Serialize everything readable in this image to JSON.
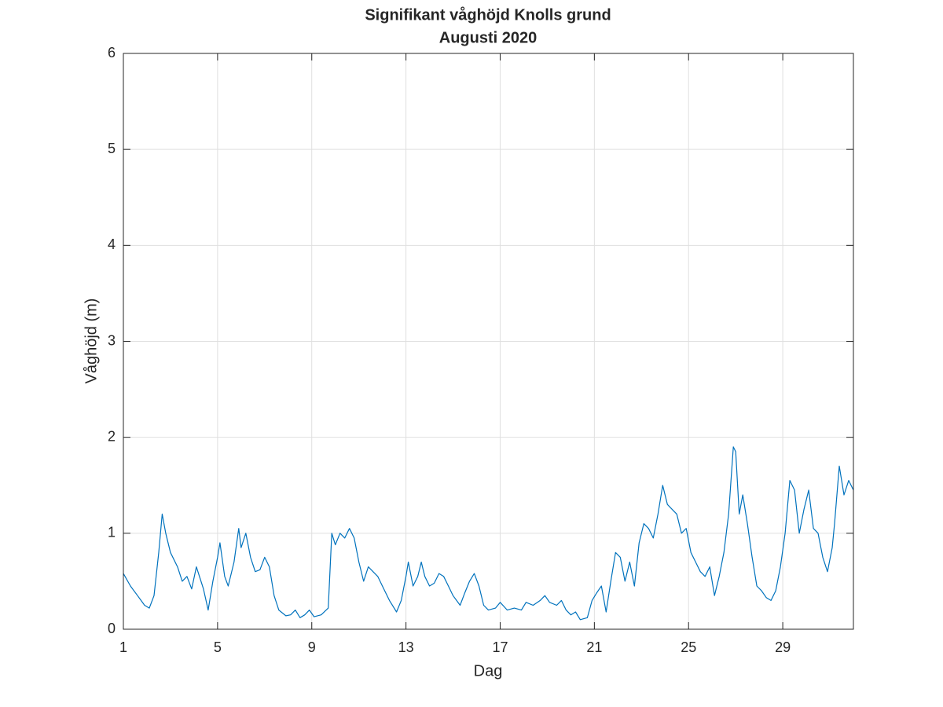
{
  "chart_data": {
    "type": "line",
    "title": "Signifikant våghöjd Knolls grund",
    "subtitle": "Augusti 2020",
    "xlabel": "Dag",
    "ylabel": "Våghöjd (m)",
    "xlim": [
      1,
      32
    ],
    "ylim": [
      0,
      6
    ],
    "xticks": [
      1,
      5,
      9,
      13,
      17,
      21,
      25,
      29
    ],
    "yticks": [
      0,
      1,
      2,
      3,
      4,
      5,
      6
    ],
    "grid": true,
    "x": [
      1.0,
      1.3,
      1.6,
      1.9,
      2.1,
      2.3,
      2.5,
      2.65,
      2.8,
      3.0,
      3.3,
      3.5,
      3.7,
      3.9,
      4.1,
      4.4,
      4.6,
      4.8,
      5.0,
      5.1,
      5.3,
      5.45,
      5.7,
      5.9,
      6.0,
      6.2,
      6.4,
      6.6,
      6.8,
      7.0,
      7.2,
      7.4,
      7.6,
      7.9,
      8.1,
      8.3,
      8.5,
      8.7,
      8.9,
      9.1,
      9.4,
      9.7,
      9.85,
      10.0,
      10.2,
      10.4,
      10.6,
      10.8,
      11.0,
      11.2,
      11.4,
      11.6,
      11.8,
      12.0,
      12.3,
      12.6,
      12.8,
      13.0,
      13.1,
      13.3,
      13.5,
      13.65,
      13.8,
      14.0,
      14.2,
      14.4,
      14.6,
      14.8,
      15.0,
      15.3,
      15.5,
      15.7,
      15.9,
      16.1,
      16.3,
      16.5,
      16.8,
      17.0,
      17.3,
      17.6,
      17.9,
      18.1,
      18.4,
      18.7,
      18.9,
      19.1,
      19.4,
      19.6,
      19.8,
      20.0,
      20.2,
      20.4,
      20.7,
      20.9,
      21.1,
      21.3,
      21.5,
      21.7,
      21.9,
      22.1,
      22.3,
      22.5,
      22.7,
      22.9,
      23.1,
      23.3,
      23.5,
      23.7,
      23.9,
      24.1,
      24.3,
      24.5,
      24.7,
      24.9,
      25.1,
      25.3,
      25.5,
      25.7,
      25.9,
      26.1,
      26.3,
      26.5,
      26.7,
      26.9,
      27.0,
      27.15,
      27.3,
      27.5,
      27.7,
      27.9,
      28.1,
      28.3,
      28.5,
      28.7,
      28.9,
      29.1,
      29.3,
      29.5,
      29.7,
      29.9,
      30.1,
      30.3,
      30.5,
      30.7,
      30.9,
      31.1,
      31.2,
      31.4,
      31.6,
      31.8,
      32.0
    ],
    "series": [
      {
        "color": "#0072bd",
        "values": [
          0.58,
          0.45,
          0.35,
          0.25,
          0.22,
          0.35,
          0.8,
          1.2,
          1.0,
          0.8,
          0.65,
          0.5,
          0.55,
          0.42,
          0.65,
          0.42,
          0.2,
          0.5,
          0.75,
          0.9,
          0.55,
          0.45,
          0.7,
          1.05,
          0.85,
          1.0,
          0.75,
          0.6,
          0.62,
          0.75,
          0.65,
          0.35,
          0.2,
          0.14,
          0.15,
          0.2,
          0.12,
          0.15,
          0.2,
          0.13,
          0.15,
          0.22,
          1.0,
          0.88,
          1.0,
          0.95,
          1.05,
          0.95,
          0.7,
          0.5,
          0.65,
          0.6,
          0.55,
          0.45,
          0.3,
          0.18,
          0.3,
          0.55,
          0.7,
          0.45,
          0.55,
          0.7,
          0.55,
          0.45,
          0.48,
          0.58,
          0.55,
          0.45,
          0.35,
          0.25,
          0.38,
          0.5,
          0.58,
          0.45,
          0.25,
          0.2,
          0.22,
          0.28,
          0.2,
          0.22,
          0.2,
          0.28,
          0.25,
          0.3,
          0.35,
          0.28,
          0.25,
          0.3,
          0.2,
          0.15,
          0.18,
          0.1,
          0.12,
          0.3,
          0.38,
          0.45,
          0.18,
          0.5,
          0.8,
          0.75,
          0.5,
          0.7,
          0.45,
          0.9,
          1.1,
          1.05,
          0.95,
          1.2,
          1.5,
          1.3,
          1.25,
          1.2,
          1.0,
          1.05,
          0.8,
          0.7,
          0.6,
          0.55,
          0.65,
          0.35,
          0.55,
          0.8,
          1.2,
          1.9,
          1.85,
          1.2,
          1.4,
          1.1,
          0.75,
          0.45,
          0.4,
          0.33,
          0.3,
          0.4,
          0.65,
          1.0,
          1.55,
          1.45,
          1.0,
          1.25,
          1.45,
          1.05,
          1.0,
          0.75,
          0.6,
          0.85,
          1.1,
          1.7,
          1.4,
          1.55,
          1.45
        ]
      }
    ]
  }
}
